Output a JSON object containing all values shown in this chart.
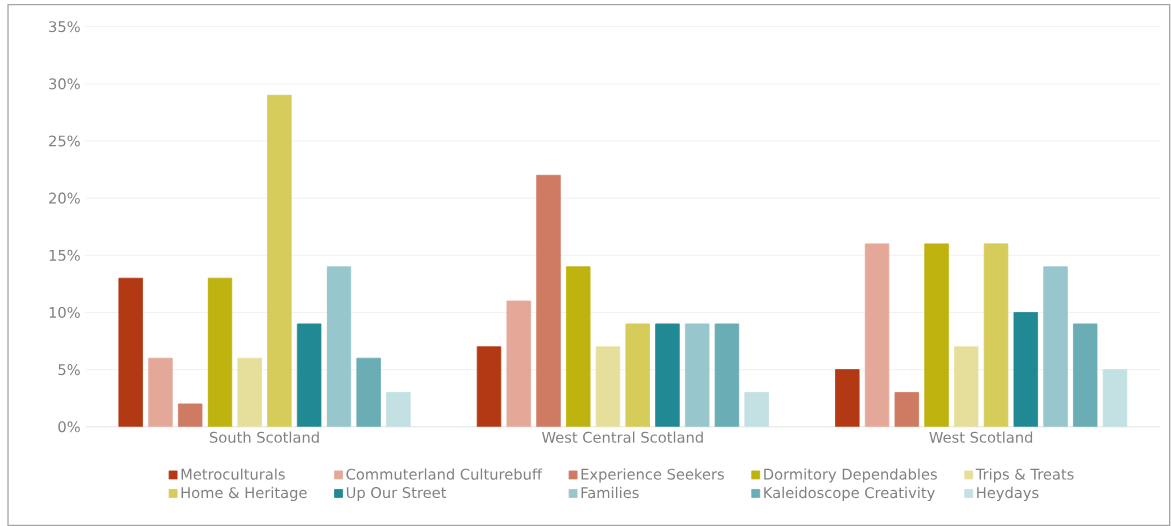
{
  "chart_data": {
    "type": "bar",
    "categories": [
      "South Scotland",
      "West Central Scotland",
      "West Scotland"
    ],
    "series": [
      {
        "name": "Metroculturals",
        "color": "#b33814",
        "values": [
          13,
          7,
          5
        ]
      },
      {
        "name": "Commuterland Culturebuff",
        "color": "#e4a898",
        "values": [
          6,
          11,
          16
        ]
      },
      {
        "name": "Experience Seekers",
        "color": "#cf7a62",
        "values": [
          2,
          22,
          3
        ]
      },
      {
        "name": "Dormitory Dependables",
        "color": "#bfb30f",
        "values": [
          13,
          14,
          16
        ]
      },
      {
        "name": "Trips & Treats",
        "color": "#e6df9c",
        "values": [
          6,
          7,
          7
        ]
      },
      {
        "name": "Home & Heritage",
        "color": "#d6cc5a",
        "values": [
          29,
          9,
          16
        ]
      },
      {
        "name": "Up Our Street",
        "color": "#218993",
        "values": [
          9,
          9,
          10
        ]
      },
      {
        "name": "Families",
        "color": "#97c7cc",
        "values": [
          14,
          9,
          14
        ]
      },
      {
        "name": "Kaleidoscope Creativity",
        "color": "#6aadb4",
        "values": [
          6,
          9,
          9
        ]
      },
      {
        "name": "Heydays",
        "color": "#c3e0e3",
        "values": [
          3,
          3,
          5
        ]
      }
    ],
    "ylim": [
      0,
      35
    ],
    "yticks": [
      {
        "value": 0,
        "label": "0%"
      },
      {
        "value": 5,
        "label": "5%"
      },
      {
        "value": 10,
        "label": "10%"
      },
      {
        "value": 15,
        "label": "15%"
      },
      {
        "value": 20,
        "label": "20%"
      },
      {
        "value": 25,
        "label": "25%"
      },
      {
        "value": 30,
        "label": "30%"
      },
      {
        "value": 35,
        "label": "35%"
      }
    ],
    "grid": "y",
    "legend": "bottom"
  }
}
